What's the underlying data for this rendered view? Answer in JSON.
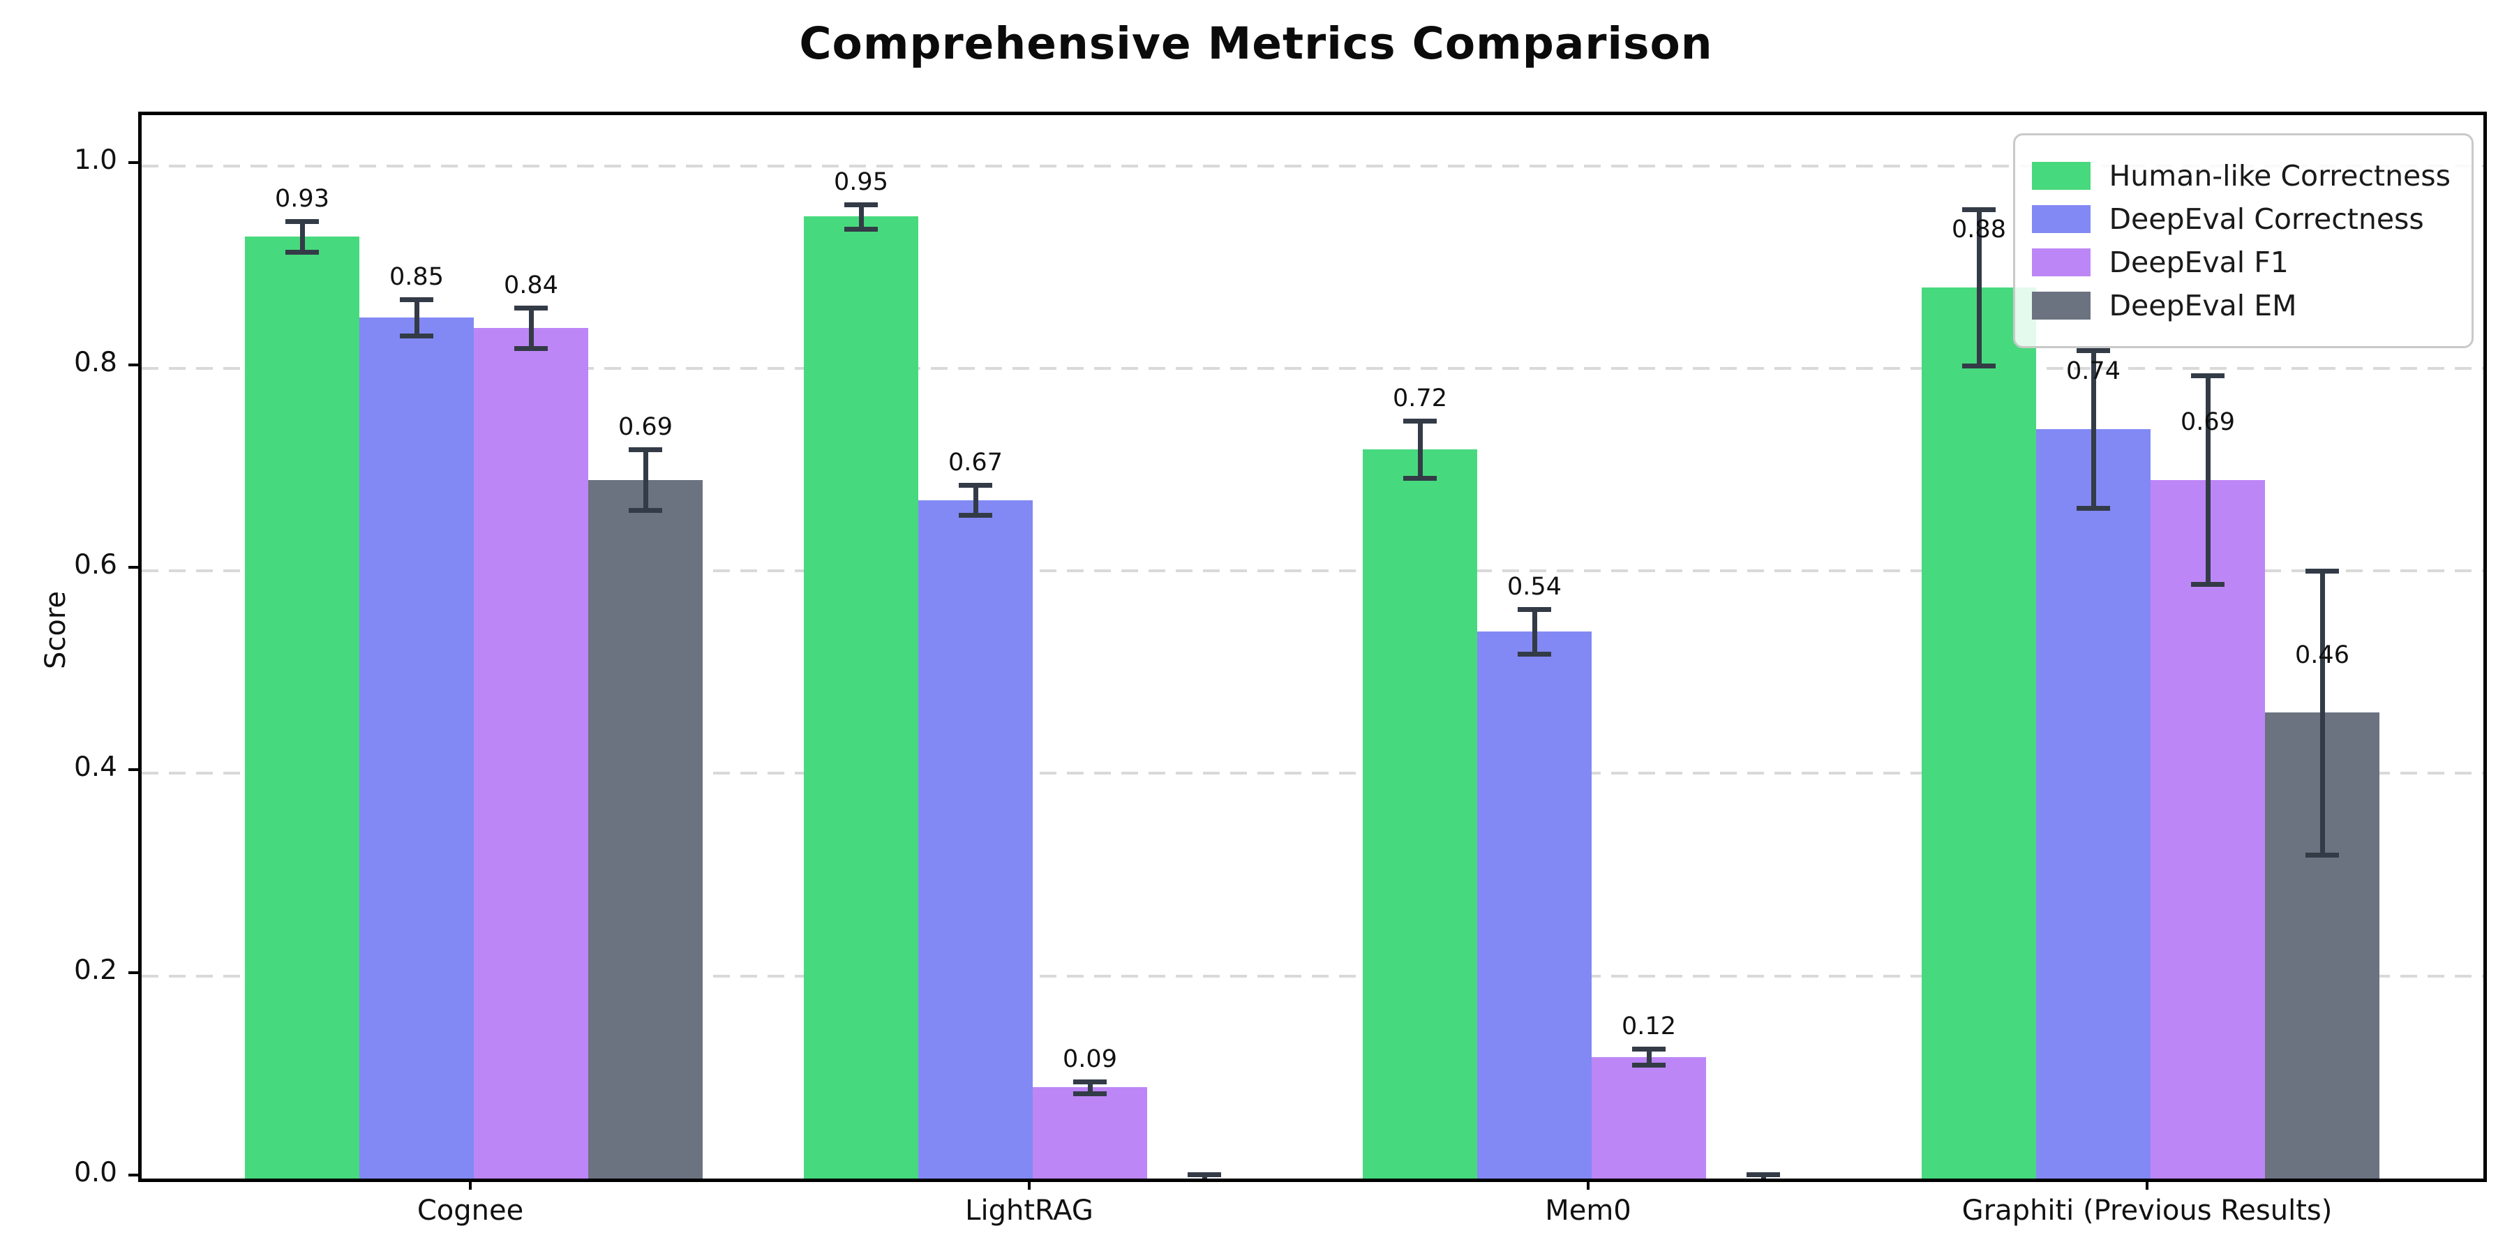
{
  "title": "Comprehensive Metrics Comparison",
  "chart_data": {
    "type": "bar",
    "title": "Comprehensive Metrics Comparison",
    "xlabel": "",
    "ylabel": "Score",
    "categories": [
      "Cognee",
      "LightRAG",
      "Mem0",
      "Graphiti (Previous Results)"
    ],
    "series": [
      {
        "name": "Human-like Correctness",
        "color": "#47d97d",
        "values": [
          0.93,
          0.95,
          0.72,
          0.88
        ],
        "errors": [
          0.015,
          0.012,
          0.028,
          0.077
        ],
        "labels": [
          "0.93",
          "0.95",
          "0.72",
          "0.88"
        ]
      },
      {
        "name": "DeepEval Correctness",
        "color": "#8289f4",
        "values": [
          0.85,
          0.67,
          0.54,
          0.74
        ],
        "errors": [
          0.018,
          0.015,
          0.022,
          0.078
        ],
        "labels": [
          "0.85",
          "0.67",
          "0.54",
          "0.74"
        ]
      },
      {
        "name": "DeepEval F1",
        "color": "#bd86f6",
        "values": [
          0.84,
          0.09,
          0.12,
          0.69
        ],
        "errors": [
          0.02,
          0.006,
          0.008,
          0.103
        ],
        "labels": [
          "0.84",
          "0.09",
          "0.12",
          "0.69"
        ]
      },
      {
        "name": "DeepEval EM",
        "color": "#6b7280",
        "values": [
          0.69,
          0.0,
          0.0,
          0.46
        ],
        "errors": [
          0.03,
          0.004,
          0.004,
          0.14
        ],
        "labels": [
          "0.69",
          "",
          "",
          "0.46"
        ]
      }
    ],
    "ylim": [
      0.0,
      1.05
    ],
    "y_ticks": [
      "0.0",
      "0.2",
      "0.4",
      "0.6",
      "0.8",
      "1.0"
    ],
    "grid": "horizontal dashed",
    "legend_position": "upper right"
  },
  "colors": {
    "errorbar": "#333b47",
    "grid": "#d9d9d9",
    "axis": "#000000",
    "legend_border": "#c9c9c9"
  }
}
